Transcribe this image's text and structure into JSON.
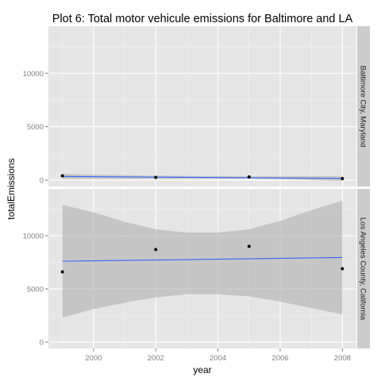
{
  "chart_data": {
    "type": "scatter",
    "title": "Plot 6: Total motor vehicule emissions for Baltimore and LA",
    "xlabel": "year",
    "ylabel": "totalEmissions",
    "xlim": [
      1998.55,
      2008.45
    ],
    "ylim": [
      -600,
      14400
    ],
    "x_ticks": [
      2000,
      2002,
      2004,
      2006,
      2008
    ],
    "y_ticks": [
      0,
      5000,
      10000
    ],
    "grid": true,
    "panel_background": "#e5e5e5",
    "strip_background": "#cccccc",
    "point_color": "#000000",
    "line_color": "#3366ff",
    "band_color": "#b3b3b3",
    "facets": [
      {
        "label": "Baltimore City, Maryland",
        "x": [
          1999,
          2002,
          2005,
          2008
        ],
        "y": [
          400,
          250,
          300,
          140
        ],
        "trend": {
          "x": [
            1999,
            2008
          ],
          "y": [
            340,
            160
          ]
        },
        "band_upper": [
          [
            1999,
            580
          ],
          [
            2002,
            410
          ],
          [
            2005,
            360
          ],
          [
            2008,
            380
          ]
        ],
        "band_lower": [
          [
            1999,
            110
          ],
          [
            2002,
            130
          ],
          [
            2005,
            140
          ],
          [
            2008,
            -70
          ]
        ]
      },
      {
        "label": "Los Angeles County, California",
        "x": [
          1999,
          2002,
          2005,
          2008
        ],
        "y": [
          6600,
          8700,
          9000,
          6900
        ],
        "trend": {
          "x": [
            1999,
            2008
          ],
          "y": [
            7600,
            7950
          ]
        },
        "band_upper": [
          [
            1999,
            12900
          ],
          [
            2000,
            12200
          ],
          [
            2001,
            11300
          ],
          [
            2002,
            10600
          ],
          [
            2003,
            10300
          ],
          [
            2004,
            10300
          ],
          [
            2005,
            10600
          ],
          [
            2006,
            11400
          ],
          [
            2007,
            12400
          ],
          [
            2008,
            13300
          ]
        ],
        "band_lower": [
          [
            1999,
            2300
          ],
          [
            2000,
            3100
          ],
          [
            2001,
            3700
          ],
          [
            2002,
            4200
          ],
          [
            2003,
            4500
          ],
          [
            2004,
            4500
          ],
          [
            2005,
            4300
          ],
          [
            2006,
            3800
          ],
          [
            2007,
            3200
          ],
          [
            2008,
            2600
          ]
        ]
      }
    ]
  }
}
